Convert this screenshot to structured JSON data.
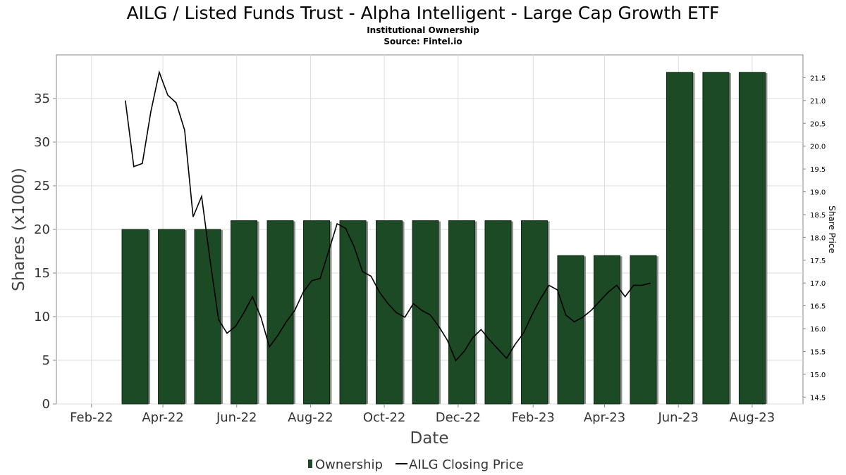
{
  "chart_data": {
    "type": "bar",
    "title": "AILG / Listed Funds Trust - Alpha Intelligent - Large Cap Growth ETF",
    "subtitle_1": "Institutional Ownership",
    "subtitle_2": "Source: Fintel.io",
    "xlabel": "Date",
    "ylabel": "Shares (x1000)",
    "y2label": "Share Price",
    "x_tick_labels": [
      "Feb-22",
      "Apr-22",
      "Jun-22",
      "Aug-22",
      "Oct-22",
      "Dec-22",
      "Feb-23",
      "Apr-23",
      "Jun-23",
      "Aug-23"
    ],
    "x_tick_dates": [
      "2022-02-01",
      "2022-04-01",
      "2022-06-01",
      "2022-08-01",
      "2022-10-01",
      "2022-12-01",
      "2023-02-01",
      "2023-04-01",
      "2023-06-01",
      "2023-08-01"
    ],
    "xlim": [
      "2022-01-03",
      "2023-09-12"
    ],
    "ylim": [
      0,
      40
    ],
    "y_ticks": [
      0,
      5,
      10,
      15,
      20,
      25,
      30,
      35
    ],
    "y2lim": [
      14.35,
      22.0
    ],
    "y2_ticks": [
      14.5,
      15.0,
      15.5,
      16.0,
      16.5,
      17.0,
      17.5,
      18.0,
      18.5,
      19.0,
      19.5,
      20.0,
      20.5,
      21.0,
      21.5
    ],
    "y2_tick_labels": [
      "14.5",
      "15.0",
      "15.5",
      "16.0",
      "16.5",
      "17.0",
      "17.5",
      "18.0",
      "18.5",
      "19.0",
      "19.5",
      "20.0",
      "20.5",
      "21.0",
      "21.5"
    ],
    "grid": true,
    "legend_position": "bottom-center",
    "series": [
      {
        "name": "Ownership",
        "kind": "bar",
        "color": "#1c4a25",
        "dates": [
          "2022-03-09",
          "2022-04-08",
          "2022-05-08",
          "2022-06-07",
          "2022-07-07",
          "2022-08-06",
          "2022-09-05",
          "2022-10-05",
          "2022-11-04",
          "2022-12-04",
          "2023-01-03",
          "2023-02-02",
          "2023-03-04",
          "2023-04-03",
          "2023-05-03",
          "2023-06-02",
          "2023-07-02",
          "2023-08-01"
        ],
        "values": [
          20,
          20,
          20,
          21,
          21,
          21,
          21,
          21,
          21,
          21,
          21,
          21,
          17,
          17,
          17,
          38,
          38,
          38
        ]
      },
      {
        "name": "AILG Closing Price",
        "kind": "line",
        "color": "#000000",
        "dates": [
          "2022-03-01",
          "2022-03-08",
          "2022-03-15",
          "2022-03-22",
          "2022-03-29",
          "2022-04-05",
          "2022-04-12",
          "2022-04-19",
          "2022-04-26",
          "2022-05-03",
          "2022-05-10",
          "2022-05-17",
          "2022-05-24",
          "2022-05-31",
          "2022-06-07",
          "2022-06-14",
          "2022-06-21",
          "2022-06-28",
          "2022-07-05",
          "2022-07-12",
          "2022-07-19",
          "2022-07-26",
          "2022-08-02",
          "2022-08-09",
          "2022-08-16",
          "2022-08-23",
          "2022-08-30",
          "2022-09-06",
          "2022-09-13",
          "2022-09-20",
          "2022-09-27",
          "2022-10-04",
          "2022-10-11",
          "2022-10-18",
          "2022-10-25",
          "2022-11-01",
          "2022-11-08",
          "2022-11-15",
          "2022-11-22",
          "2022-11-29",
          "2022-12-06",
          "2022-12-13",
          "2022-12-20",
          "2022-12-27",
          "2023-01-03",
          "2023-01-10",
          "2023-01-17",
          "2023-01-24",
          "2023-01-31",
          "2023-02-07",
          "2023-02-14",
          "2023-02-21",
          "2023-02-28",
          "2023-03-07",
          "2023-03-14",
          "2023-03-21",
          "2023-03-28",
          "2023-04-04",
          "2023-04-11",
          "2023-04-18",
          "2023-04-25",
          "2023-05-02",
          "2023-05-09"
        ],
        "values": [
          21.0,
          19.55,
          19.62,
          20.75,
          21.62,
          21.12,
          20.95,
          20.35,
          18.45,
          18.9,
          17.5,
          16.2,
          15.9,
          16.05,
          16.35,
          16.7,
          16.25,
          15.6,
          15.85,
          16.15,
          16.4,
          16.8,
          17.05,
          17.1,
          17.7,
          18.3,
          18.2,
          17.8,
          17.25,
          17.15,
          16.8,
          16.55,
          16.35,
          16.25,
          16.55,
          16.4,
          16.3,
          16.05,
          15.75,
          15.3,
          15.5,
          15.8,
          15.98,
          15.75,
          15.55,
          15.35,
          15.65,
          15.9,
          16.3,
          16.65,
          16.95,
          16.85,
          16.3,
          16.15,
          16.25,
          16.4,
          16.6,
          16.8,
          16.95,
          16.7,
          16.95,
          16.95,
          17.0
        ]
      }
    ]
  }
}
